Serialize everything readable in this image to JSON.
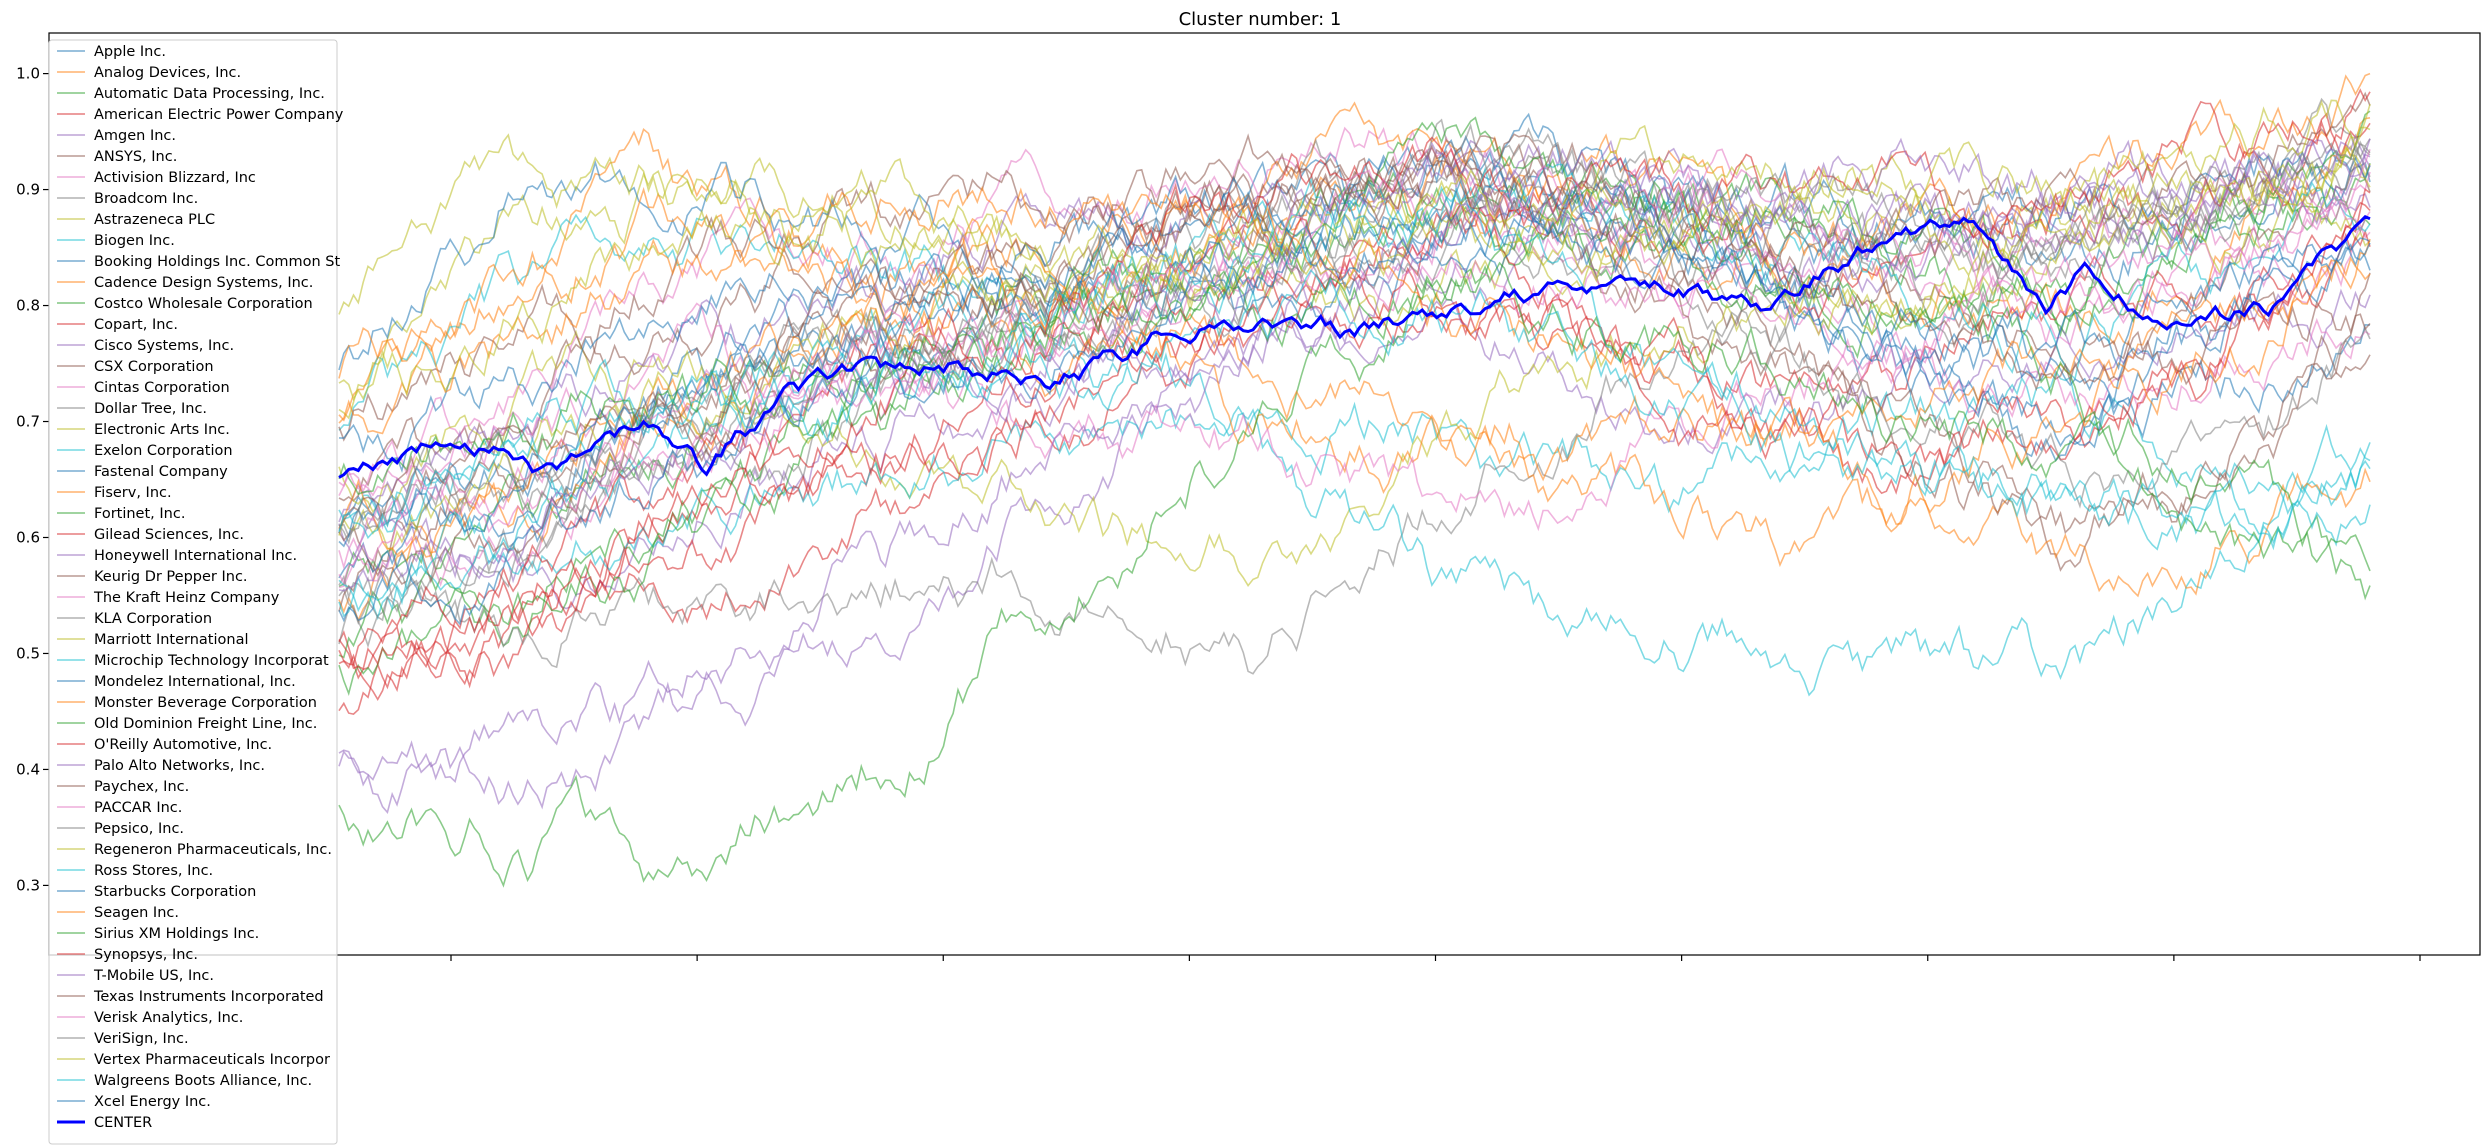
{
  "chart_data": {
    "type": "line",
    "title": "Cluster number: 1",
    "xlabel": "",
    "ylabel": "",
    "ylim": [
      0.24,
      1.035
    ],
    "yticks": [
      0.3,
      0.4,
      0.5,
      0.6,
      0.7,
      0.8,
      0.9,
      1.0
    ],
    "ytick_labels": [
      "0.3",
      "0.4",
      "0.5",
      "0.6",
      "0.7",
      "0.8",
      "0.9",
      "1.0"
    ],
    "x_tick_count": 9,
    "grid": false,
    "legend_position": "upper-left",
    "center_series": {
      "name": "CENTER",
      "color": "#0000ff",
      "x": [
        0,
        3,
        6,
        10,
        15,
        18,
        22,
        25,
        30,
        35,
        40,
        45,
        50,
        55,
        60,
        65,
        70,
        75,
        80,
        84,
        86,
        90,
        95,
        100
      ],
      "y": [
        0.65,
        0.665,
        0.69,
        0.655,
        0.7,
        0.66,
        0.72,
        0.74,
        0.75,
        0.73,
        0.77,
        0.79,
        0.78,
        0.8,
        0.81,
        0.82,
        0.8,
        0.85,
        0.875,
        0.8,
        0.83,
        0.78,
        0.8,
        0.875
      ]
    },
    "series_profile_x": [
      0,
      8,
      15,
      25,
      35,
      45,
      55,
      65,
      75,
      85,
      95,
      100
    ],
    "series": [
      {
        "name": "Apple Inc.",
        "color": "#1f77b4",
        "profile": [
          0.6,
          0.65,
          0.72,
          0.78,
          0.82,
          0.86,
          0.9,
          0.9,
          0.87,
          0.84,
          0.9,
          0.9
        ]
      },
      {
        "name": "Analog Devices, Inc.",
        "color": "#ff7f0e",
        "profile": [
          0.7,
          0.8,
          0.9,
          0.85,
          0.8,
          0.88,
          0.92,
          0.88,
          0.82,
          0.8,
          0.88,
          0.95
        ]
      },
      {
        "name": "Automatic Data Processing, Inc.",
        "color": "#2ca02c",
        "profile": [
          0.55,
          0.6,
          0.68,
          0.75,
          0.8,
          0.85,
          0.9,
          0.88,
          0.85,
          0.8,
          0.9,
          0.92
        ]
      },
      {
        "name": "American Electric Power Company",
        "color": "#d62728",
        "profile": [
          0.5,
          0.48,
          0.55,
          0.6,
          0.7,
          0.78,
          0.82,
          0.75,
          0.7,
          0.8,
          0.85,
          0.88
        ]
      },
      {
        "name": "Amgen Inc.",
        "color": "#9467bd",
        "profile": [
          0.6,
          0.55,
          0.6,
          0.7,
          0.72,
          0.75,
          0.8,
          0.7,
          0.72,
          0.78,
          0.8,
          0.82
        ]
      },
      {
        "name": "ANSYS, Inc.",
        "color": "#8c564b",
        "profile": [
          0.62,
          0.7,
          0.78,
          0.82,
          0.85,
          0.88,
          0.92,
          0.9,
          0.82,
          0.75,
          0.85,
          0.88
        ]
      },
      {
        "name": "Activision Blizzard, Inc",
        "color": "#e377c2",
        "profile": [
          0.65,
          0.7,
          0.8,
          0.85,
          0.9,
          0.92,
          0.95,
          0.85,
          0.8,
          0.78,
          0.82,
          0.85
        ]
      },
      {
        "name": "Broadcom Inc.",
        "color": "#7f7f7f",
        "profile": [
          0.52,
          0.55,
          0.62,
          0.7,
          0.78,
          0.85,
          0.9,
          0.88,
          0.85,
          0.88,
          0.92,
          0.95
        ]
      },
      {
        "name": "Astrazeneca PLC",
        "color": "#bcbd22",
        "profile": [
          0.72,
          0.85,
          0.88,
          0.9,
          0.85,
          0.8,
          0.82,
          0.86,
          0.9,
          0.88,
          0.92,
          0.9
        ]
      },
      {
        "name": "Biogen Inc.",
        "color": "#17becf",
        "profile": [
          0.7,
          0.8,
          0.88,
          0.85,
          0.78,
          0.72,
          0.68,
          0.62,
          0.7,
          0.72,
          0.65,
          0.65
        ]
      },
      {
        "name": "Booking Holdings Inc. Common St",
        "color": "#1f77b4",
        "profile": [
          0.75,
          0.9,
          0.92,
          0.88,
          0.82,
          0.78,
          0.85,
          0.9,
          0.75,
          0.68,
          0.75,
          0.8
        ]
      },
      {
        "name": "Cadence Design Systems, Inc.",
        "color": "#ff7f0e",
        "profile": [
          0.55,
          0.6,
          0.7,
          0.78,
          0.85,
          0.9,
          0.95,
          0.9,
          0.85,
          0.88,
          0.95,
          0.98
        ]
      },
      {
        "name": "Costco Wholesale Corporation",
        "color": "#2ca02c",
        "profile": [
          0.5,
          0.55,
          0.62,
          0.7,
          0.78,
          0.82,
          0.88,
          0.85,
          0.8,
          0.82,
          0.88,
          0.9
        ]
      },
      {
        "name": "Copart, Inc.",
        "color": "#d62728",
        "profile": [
          0.45,
          0.5,
          0.58,
          0.68,
          0.75,
          0.82,
          0.88,
          0.85,
          0.82,
          0.85,
          0.92,
          0.95
        ]
      },
      {
        "name": "Cisco Systems, Inc.",
        "color": "#9467bd",
        "profile": [
          0.4,
          0.38,
          0.42,
          0.52,
          0.65,
          0.75,
          0.82,
          0.85,
          0.88,
          0.85,
          0.9,
          0.9
        ]
      },
      {
        "name": "CSX Corporation",
        "color": "#8c564b",
        "profile": [
          0.6,
          0.65,
          0.72,
          0.8,
          0.85,
          0.9,
          0.92,
          0.85,
          0.72,
          0.6,
          0.7,
          0.78
        ]
      },
      {
        "name": "Cintas Corporation",
        "color": "#e377c2",
        "profile": [
          0.55,
          0.6,
          0.68,
          0.72,
          0.78,
          0.82,
          0.88,
          0.9,
          0.85,
          0.82,
          0.88,
          0.9
        ]
      },
      {
        "name": "Dollar Tree, Inc.",
        "color": "#7f7f7f",
        "profile": [
          0.55,
          0.52,
          0.55,
          0.58,
          0.57,
          0.5,
          0.62,
          0.75,
          0.8,
          0.85,
          0.9,
          0.92
        ]
      },
      {
        "name": "Electronic Arts Inc.",
        "color": "#bcbd22",
        "profile": [
          0.65,
          0.7,
          0.75,
          0.68,
          0.62,
          0.58,
          0.7,
          0.78,
          0.82,
          0.85,
          0.88,
          0.9
        ]
      },
      {
        "name": "Exelon Corporation",
        "color": "#17becf",
        "profile": [
          0.55,
          0.6,
          0.62,
          0.65,
          0.7,
          0.68,
          0.55,
          0.5,
          0.5,
          0.48,
          0.6,
          0.68
        ]
      },
      {
        "name": "Fastenal Company",
        "color": "#1f77b4",
        "profile": [
          0.58,
          0.62,
          0.7,
          0.78,
          0.85,
          0.9,
          0.92,
          0.88,
          0.85,
          0.88,
          0.92,
          0.95
        ]
      },
      {
        "name": "Fiserv, Inc.",
        "color": "#ff7f0e",
        "profile": [
          0.75,
          0.82,
          0.88,
          0.82,
          0.75,
          0.7,
          0.68,
          0.62,
          0.6,
          0.58,
          0.62,
          0.65
        ]
      },
      {
        "name": "Fortinet, Inc.",
        "color": "#2ca02c",
        "profile": [
          0.38,
          0.35,
          0.32,
          0.38,
          0.55,
          0.7,
          0.82,
          0.9,
          0.85,
          0.8,
          0.9,
          0.95
        ]
      },
      {
        "name": "Gilead Sciences, Inc.",
        "color": "#d62728",
        "profile": [
          0.5,
          0.55,
          0.62,
          0.72,
          0.8,
          0.85,
          0.88,
          0.75,
          0.68,
          0.7,
          0.78,
          0.85
        ]
      },
      {
        "name": "Honeywell International Inc.",
        "color": "#9467bd",
        "profile": [
          0.62,
          0.68,
          0.75,
          0.8,
          0.85,
          0.9,
          0.95,
          0.9,
          0.85,
          0.88,
          0.9,
          0.92
        ]
      },
      {
        "name": "Keurig Dr Pepper Inc.",
        "color": "#8c564b",
        "profile": [
          0.7,
          0.75,
          0.82,
          0.88,
          0.9,
          0.92,
          0.88,
          0.8,
          0.68,
          0.6,
          0.65,
          0.78
        ]
      },
      {
        "name": "The Kraft Heinz Company",
        "color": "#e377c2",
        "profile": [
          0.65,
          0.7,
          0.75,
          0.72,
          0.7,
          0.68,
          0.6,
          0.68,
          0.75,
          0.72,
          0.78,
          0.8
        ]
      },
      {
        "name": "KLA Corporation",
        "color": "#7f7f7f",
        "profile": [
          0.55,
          0.6,
          0.68,
          0.75,
          0.82,
          0.88,
          0.92,
          0.9,
          0.85,
          0.85,
          0.9,
          0.92
        ]
      },
      {
        "name": "Marriott International",
        "color": "#bcbd22",
        "profile": [
          0.6,
          0.65,
          0.72,
          0.78,
          0.82,
          0.85,
          0.9,
          0.92,
          0.88,
          0.85,
          0.9,
          0.92
        ]
      },
      {
        "name": "Microchip Technology Incorporat",
        "color": "#17becf",
        "profile": [
          0.62,
          0.68,
          0.72,
          0.75,
          0.8,
          0.85,
          0.9,
          0.88,
          0.82,
          0.78,
          0.85,
          0.88
        ]
      },
      {
        "name": "Mondelez International, Inc.",
        "color": "#1f77b4",
        "profile": [
          0.68,
          0.72,
          0.78,
          0.82,
          0.85,
          0.88,
          0.9,
          0.85,
          0.8,
          0.75,
          0.82,
          0.85
        ]
      },
      {
        "name": "Monster Beverage Corporation",
        "color": "#ff7f0e",
        "profile": [
          0.6,
          0.65,
          0.72,
          0.78,
          0.82,
          0.75,
          0.7,
          0.68,
          0.72,
          0.75,
          0.8,
          0.85
        ]
      },
      {
        "name": "Old Dominion Freight Line, Inc.",
        "color": "#2ca02c",
        "profile": [
          0.48,
          0.52,
          0.58,
          0.68,
          0.78,
          0.85,
          0.92,
          0.88,
          0.82,
          0.75,
          0.6,
          0.55
        ]
      },
      {
        "name": "O'Reilly Automotive, Inc.",
        "color": "#d62728",
        "profile": [
          0.5,
          0.52,
          0.58,
          0.65,
          0.72,
          0.78,
          0.82,
          0.72,
          0.65,
          0.7,
          0.8,
          0.88
        ]
      },
      {
        "name": "Palo Alto Networks, Inc.",
        "color": "#9467bd",
        "profile": [
          0.4,
          0.42,
          0.45,
          0.55,
          0.68,
          0.78,
          0.88,
          0.92,
          0.88,
          0.85,
          0.9,
          0.95
        ]
      },
      {
        "name": "Paychex, Inc.",
        "color": "#8c564b",
        "profile": [
          0.55,
          0.6,
          0.68,
          0.75,
          0.82,
          0.88,
          0.92,
          0.88,
          0.85,
          0.88,
          0.92,
          0.95
        ]
      },
      {
        "name": "PACCAR Inc.",
        "color": "#e377c2",
        "profile": [
          0.58,
          0.62,
          0.68,
          0.72,
          0.78,
          0.8,
          0.85,
          0.82,
          0.78,
          0.8,
          0.85,
          0.88
        ]
      },
      {
        "name": "Pepsico, Inc.",
        "color": "#7f7f7f",
        "profile": [
          0.62,
          0.65,
          0.7,
          0.75,
          0.78,
          0.82,
          0.85,
          0.82,
          0.72,
          0.65,
          0.7,
          0.78
        ]
      },
      {
        "name": "Regeneron Pharmaceuticals, Inc.",
        "color": "#bcbd22",
        "profile": [
          0.8,
          0.88,
          0.9,
          0.85,
          0.82,
          0.85,
          0.88,
          0.85,
          0.82,
          0.85,
          0.9,
          0.92
        ]
      },
      {
        "name": "Ross Stores, Inc.",
        "color": "#17becf",
        "profile": [
          0.55,
          0.6,
          0.68,
          0.75,
          0.8,
          0.85,
          0.88,
          0.75,
          0.68,
          0.62,
          0.6,
          0.62
        ]
      },
      {
        "name": "Starbucks Corporation",
        "color": "#1f77b4",
        "profile": [
          0.6,
          0.65,
          0.72,
          0.78,
          0.82,
          0.85,
          0.9,
          0.85,
          0.78,
          0.72,
          0.8,
          0.85
        ]
      },
      {
        "name": "Seagen Inc.",
        "color": "#ff7f0e",
        "profile": [
          0.7,
          0.75,
          0.82,
          0.88,
          0.9,
          0.85,
          0.8,
          0.72,
          0.65,
          0.7,
          0.78,
          0.85
        ]
      },
      {
        "name": "Sirius XM Holdings Inc.",
        "color": "#2ca02c",
        "profile": [
          0.65,
          0.68,
          0.72,
          0.75,
          0.78,
          0.8,
          0.82,
          0.78,
          0.72,
          0.68,
          0.55,
          0.55
        ]
      },
      {
        "name": "Synopsys, Inc.",
        "color": "#d62728",
        "profile": [
          0.5,
          0.55,
          0.62,
          0.72,
          0.8,
          0.88,
          0.92,
          0.9,
          0.88,
          0.9,
          0.95,
          0.98
        ]
      },
      {
        "name": "T-Mobile US, Inc.",
        "color": "#9467bd",
        "profile": [
          0.55,
          0.6,
          0.65,
          0.72,
          0.78,
          0.82,
          0.88,
          0.9,
          0.92,
          0.9,
          0.92,
          0.95
        ]
      },
      {
        "name": "Texas Instruments Incorporated",
        "color": "#8c564b",
        "profile": [
          0.6,
          0.65,
          0.72,
          0.78,
          0.82,
          0.88,
          0.92,
          0.88,
          0.8,
          0.75,
          0.78,
          0.8
        ]
      },
      {
        "name": "Verisk Analytics, Inc.",
        "color": "#e377c2",
        "profile": [
          0.58,
          0.62,
          0.68,
          0.75,
          0.8,
          0.85,
          0.9,
          0.88,
          0.85,
          0.82,
          0.85,
          0.88
        ]
      },
      {
        "name": "VeriSign, Inc.",
        "color": "#7f7f7f",
        "profile": [
          0.6,
          0.65,
          0.7,
          0.75,
          0.78,
          0.82,
          0.88,
          0.9,
          0.88,
          0.85,
          0.88,
          0.9
        ]
      },
      {
        "name": "Vertex Pharmaceuticals Incorpor",
        "color": "#bcbd22",
        "profile": [
          0.72,
          0.78,
          0.85,
          0.88,
          0.85,
          0.82,
          0.88,
          0.9,
          0.92,
          0.9,
          0.95,
          0.98
        ]
      },
      {
        "name": "Walgreens Boots Alliance, Inc.",
        "color": "#17becf",
        "profile": [
          0.62,
          0.65,
          0.7,
          0.72,
          0.75,
          0.78,
          0.8,
          0.72,
          0.65,
          0.6,
          0.62,
          0.65
        ]
      },
      {
        "name": "Xcel Energy Inc.",
        "color": "#1f77b4",
        "profile": [
          0.55,
          0.58,
          0.65,
          0.72,
          0.78,
          0.82,
          0.88,
          0.85,
          0.78,
          0.75,
          0.82,
          0.85
        ]
      }
    ]
  }
}
